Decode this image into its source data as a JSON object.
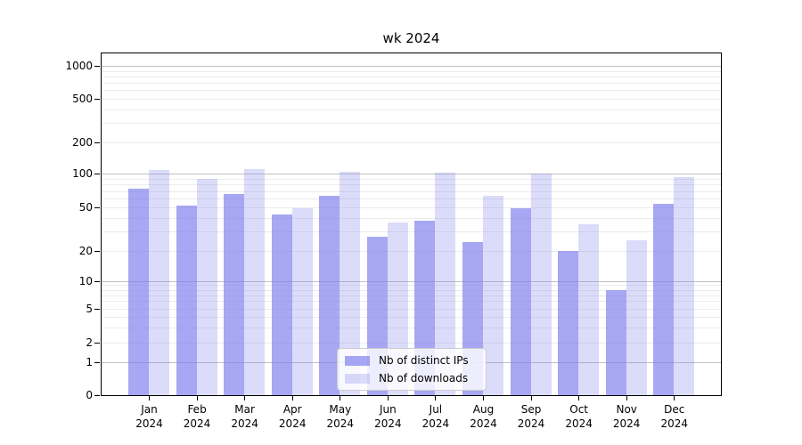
{
  "chart_data": {
    "type": "bar",
    "title": "wk 2024",
    "x_axis": {
      "categories": [
        {
          "label": "Jan",
          "sub": "2024"
        },
        {
          "label": "Feb",
          "sub": "2024"
        },
        {
          "label": "Mar",
          "sub": "2024"
        },
        {
          "label": "Apr",
          "sub": "2024"
        },
        {
          "label": "May",
          "sub": "2024"
        },
        {
          "label": "Jun",
          "sub": "2024"
        },
        {
          "label": "Jul",
          "sub": "2024"
        },
        {
          "label": "Aug",
          "sub": "2024"
        },
        {
          "label": "Sep",
          "sub": "2024"
        },
        {
          "label": "Oct",
          "sub": "2024"
        },
        {
          "label": "Nov",
          "sub": "2024"
        },
        {
          "label": "Dec",
          "sub": "2024"
        }
      ]
    },
    "y_axis": {
      "scale": "symlog",
      "ticks": [
        0,
        1,
        2,
        5,
        10,
        20,
        50,
        100,
        200,
        500,
        1000
      ],
      "range": [
        0,
        1300
      ]
    },
    "series": [
      {
        "name": "Nb of distinct IPs",
        "color": "rgba(124,124,237,0.67)",
        "values": [
          73,
          52,
          66,
          43,
          63,
          27,
          38,
          24,
          49,
          20,
          8,
          54
        ]
      },
      {
        "name": "Nb of downloads",
        "color": "rgba(124,124,237,0.28)",
        "values": [
          108,
          90,
          112,
          49,
          105,
          36,
          102,
          63,
          101,
          35,
          25,
          93
        ]
      }
    ],
    "legend": {
      "position": "lower center"
    },
    "grid": {
      "major_color": "#c2c2c2",
      "minor_color": "#ececec"
    },
    "colors": {
      "axis": "#000000",
      "background": "#ffffff"
    }
  }
}
